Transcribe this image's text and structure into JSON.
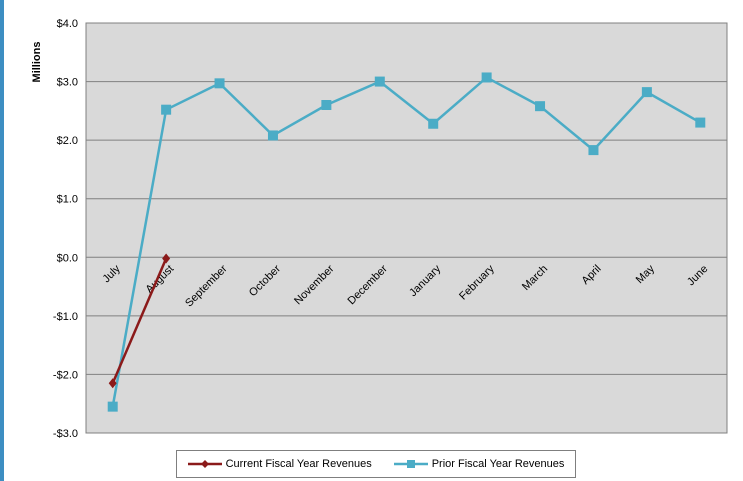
{
  "chart_data": {
    "type": "line",
    "title": "",
    "ylabel": "Millions",
    "xlabel": "",
    "categories": [
      "July",
      "August",
      "September",
      "October",
      "November",
      "December",
      "January",
      "February",
      "March",
      "April",
      "May",
      "June"
    ],
    "ylim": [
      -3.0,
      4.0
    ],
    "yticks": [
      -3.0,
      -2.0,
      -1.0,
      0.0,
      1.0,
      2.0,
      3.0,
      4.0
    ],
    "ytick_labels": [
      "-$3.0",
      "-$2.0",
      "-$1.0",
      "$0.0",
      "$1.0",
      "$2.0",
      "$3.0",
      "$4.0"
    ],
    "grid": true,
    "legend_position": "bottom",
    "series": [
      {
        "name": "Current Fiscal Year Revenues",
        "color": "#8b1a1a",
        "marker": "diamond",
        "values": [
          -2.15,
          -0.02,
          null,
          null,
          null,
          null,
          null,
          null,
          null,
          null,
          null,
          null
        ]
      },
      {
        "name": "Prior Fiscal Year Revenues",
        "color": "#4bacc6",
        "marker": "square",
        "values": [
          -2.55,
          2.52,
          2.97,
          2.08,
          2.6,
          3.0,
          2.28,
          3.07,
          2.58,
          1.83,
          2.82,
          2.3
        ]
      }
    ]
  }
}
